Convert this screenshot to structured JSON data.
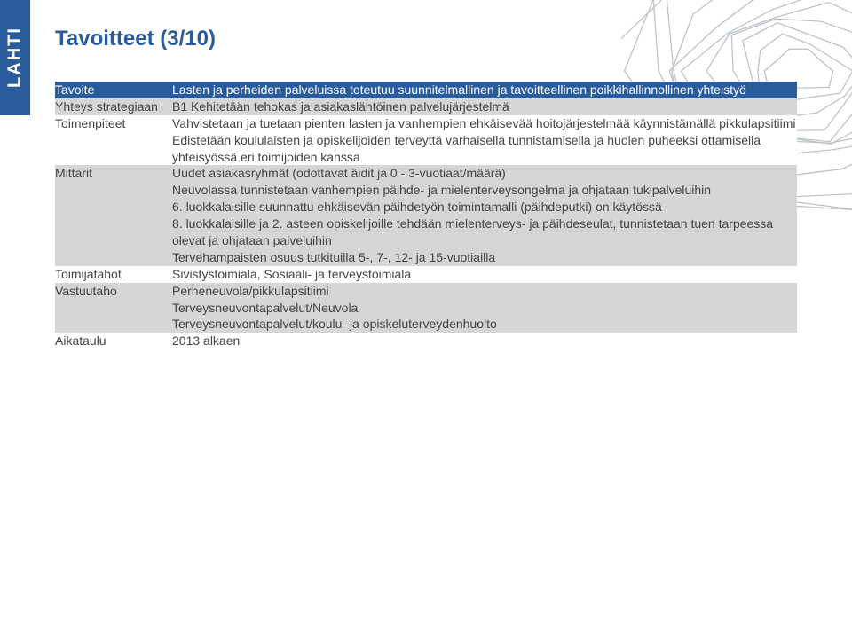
{
  "brand": "LAHTI",
  "title": "Tavoitteet (3/10)",
  "colors": {
    "brand_blue": "#2a5b9c",
    "row_alt": "#d6d6d6",
    "text": "#444444",
    "bg": "#ffffff"
  },
  "contour": {
    "stroke": "#b9bfc4",
    "stroke_width": 1.2,
    "rings": 12
  },
  "rows": [
    {
      "label": "Tavoite",
      "style": "header",
      "body": "Lasten ja perheiden palveluissa toteutuu suunnitelmallinen ja tavoitteellinen poikkihallinnollinen yhteistyö"
    },
    {
      "label": "Yhteys strategiaan",
      "style": "alt",
      "body": "B1 Kehitetään tehokas ja asiakaslähtöinen palvelujärjestelmä"
    },
    {
      "label": "Toimenpiteet",
      "style": "plain",
      "body": "Vahvistetaan ja tuetaan pienten lasten ja vanhempien ehkäisevää hoitojärjestelmää käynnistämällä pikkulapsitiimi\nEdistetään koululaisten ja opiskelijoiden terveyttä varhaisella tunnistamisella ja huolen puheeksi ottamisella yhteisyössä eri toimijoiden kanssa"
    },
    {
      "label": "Mittarit",
      "style": "alt",
      "body": "Uudet asiakasryhmät (odottavat äidit ja 0 - 3-vuotiaat/määrä)\nNeuvolassa tunnistetaan vanhempien päihde- ja mielenterveysongelma ja ohjataan tukipalveluihin\n6. luokkalaisille suunnattu ehkäisevän päihdetyön toimintamalli (päihdeputki) on käytössä\n8. luokkalaisille ja 2. asteen opiskelijoille tehdään mielenterveys- ja päihdeseulat, tunnistetaan tuen tarpeessa olevat ja ohjataan palveluihin\nTervehampaisten osuus tutkituilla 5-, 7-, 12- ja 15-vuotiailla"
    },
    {
      "label": "Toimijatahot",
      "style": "plain",
      "body": "Sivistystoimiala, Sosiaali- ja terveystoimiala"
    },
    {
      "label": "Vastuutaho",
      "style": "alt",
      "body": "Perheneuvola/pikkulapsitiimi\nTerveysneuvontapalvelut/Neuvola\nTerveysneuvontapalvelut/koulu- ja opiskeluterveydenhuolto"
    },
    {
      "label": "Aikataulu",
      "style": "plain",
      "body": "2013 alkaen"
    }
  ]
}
